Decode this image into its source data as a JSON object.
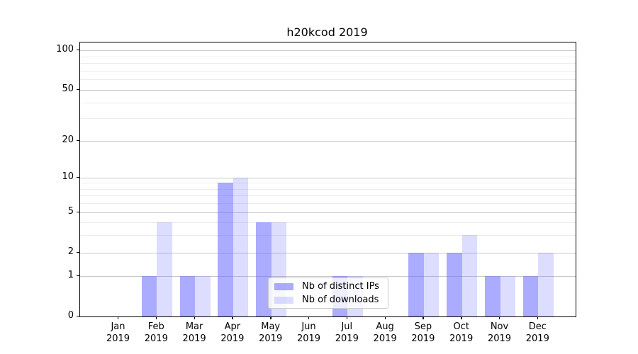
{
  "title": "h20kcod 2019",
  "colors": {
    "series_ips": "rgba(102,102,255,0.55)",
    "series_downloads": "rgba(102,102,255,0.22)",
    "major_grid": "#c9c9c9",
    "minor_grid": "#ebebeb",
    "axis": "#000000"
  },
  "legend": {
    "items": [
      {
        "label": "Nb of distinct IPs",
        "series": "ips"
      },
      {
        "label": "Nb of downloads",
        "series": "downloads"
      }
    ]
  },
  "chart_data": {
    "type": "bar",
    "title": "h20kcod 2019",
    "categories": [
      "Jan",
      "Feb",
      "Mar",
      "Apr",
      "May",
      "Jun",
      "Jul",
      "Aug",
      "Sep",
      "Oct",
      "Nov",
      "Dec"
    ],
    "year": "2019",
    "series": [
      {
        "name": "Nb of distinct IPs",
        "values": [
          0,
          1,
          1,
          9,
          4,
          0,
          1,
          0,
          2,
          2,
          1,
          1
        ]
      },
      {
        "name": "Nb of downloads",
        "values": [
          0,
          4,
          1,
          10,
          4,
          0,
          1,
          0,
          2,
          3,
          1,
          2
        ]
      }
    ],
    "yscale": "symlog",
    "ylim": [
      0,
      100
    ],
    "yticks": [
      100,
      50,
      20,
      10,
      5,
      2,
      1,
      0
    ],
    "minor_grid_values": [
      3,
      4,
      6,
      7,
      8,
      9,
      30,
      40,
      60,
      70,
      80,
      90
    ],
    "grid": true,
    "legend_position": "lower center",
    "xlabel": "",
    "ylabel": ""
  }
}
